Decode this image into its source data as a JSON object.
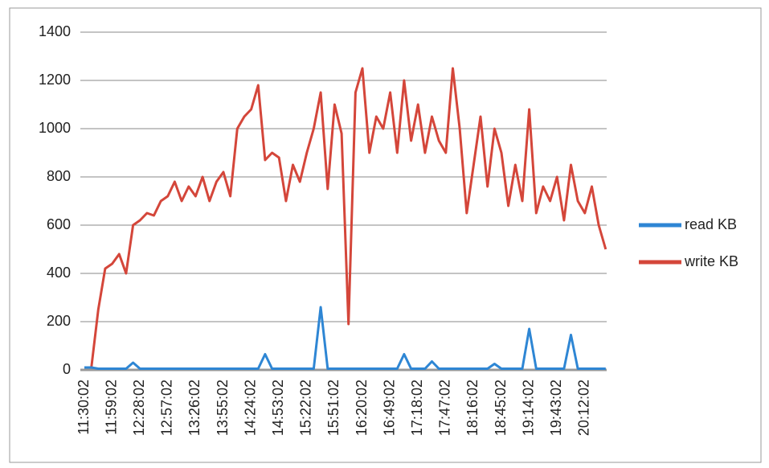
{
  "chart_data": {
    "type": "line",
    "categories": [
      "11:30:02",
      null,
      null,
      null,
      "11:59:02",
      null,
      null,
      null,
      "12:28:02",
      null,
      null,
      null,
      "12:57:02",
      null,
      null,
      null,
      "13:26:02",
      null,
      null,
      null,
      "13:55:02",
      null,
      null,
      null,
      "14:24:02",
      null,
      null,
      null,
      "14:53:02",
      null,
      null,
      null,
      "15:22:02",
      null,
      null,
      null,
      "15:51:02",
      null,
      null,
      null,
      "16:20:02",
      null,
      null,
      null,
      "16:49:02",
      null,
      null,
      null,
      "17:18:02",
      null,
      null,
      null,
      "17:47:02",
      null,
      null,
      null,
      "18:16:02",
      null,
      null,
      null,
      "18:45:02",
      null,
      null,
      null,
      "19:14:02",
      null,
      null,
      null,
      "19:43:02",
      null,
      null,
      null,
      "20:12:02",
      null,
      null,
      null
    ],
    "series": [
      {
        "name": "read KB",
        "color": "#2e86d4",
        "values": [
          10,
          10,
          5,
          5,
          5,
          5,
          5,
          30,
          5,
          5,
          5,
          5,
          5,
          5,
          5,
          5,
          5,
          5,
          5,
          5,
          5,
          5,
          5,
          5,
          5,
          5,
          65,
          5,
          5,
          5,
          5,
          5,
          5,
          5,
          260,
          5,
          5,
          5,
          5,
          5,
          5,
          5,
          5,
          5,
          5,
          5,
          65,
          5,
          5,
          5,
          35,
          5,
          5,
          5,
          5,
          5,
          5,
          5,
          5,
          25,
          5,
          5,
          5,
          5,
          170,
          5,
          5,
          5,
          5,
          5,
          145,
          5,
          5,
          5,
          5,
          5
        ]
      },
      {
        "name": "write KB",
        "color": "#d4463a",
        "values": [
          10,
          10,
          250,
          420,
          440,
          480,
          400,
          600,
          620,
          650,
          640,
          700,
          720,
          780,
          700,
          760,
          720,
          800,
          700,
          780,
          820,
          720,
          1000,
          1050,
          1080,
          1180,
          870,
          900,
          880,
          700,
          850,
          780,
          900,
          1000,
          1150,
          750,
          1100,
          980,
          190,
          1150,
          1250,
          900,
          1050,
          1000,
          1150,
          900,
          1200,
          950,
          1100,
          900,
          1050,
          950,
          900,
          1250,
          1000,
          650,
          850,
          1050,
          760,
          1000,
          900,
          680,
          850,
          700,
          1080,
          650,
          760,
          700,
          800,
          620,
          850,
          700,
          650,
          760,
          600,
          500
        ]
      }
    ],
    "ylim": [
      0,
      1400
    ],
    "yticks": [
      0,
      200,
      400,
      600,
      800,
      1000,
      1200,
      1400
    ],
    "grid": true,
    "legend": "right"
  }
}
